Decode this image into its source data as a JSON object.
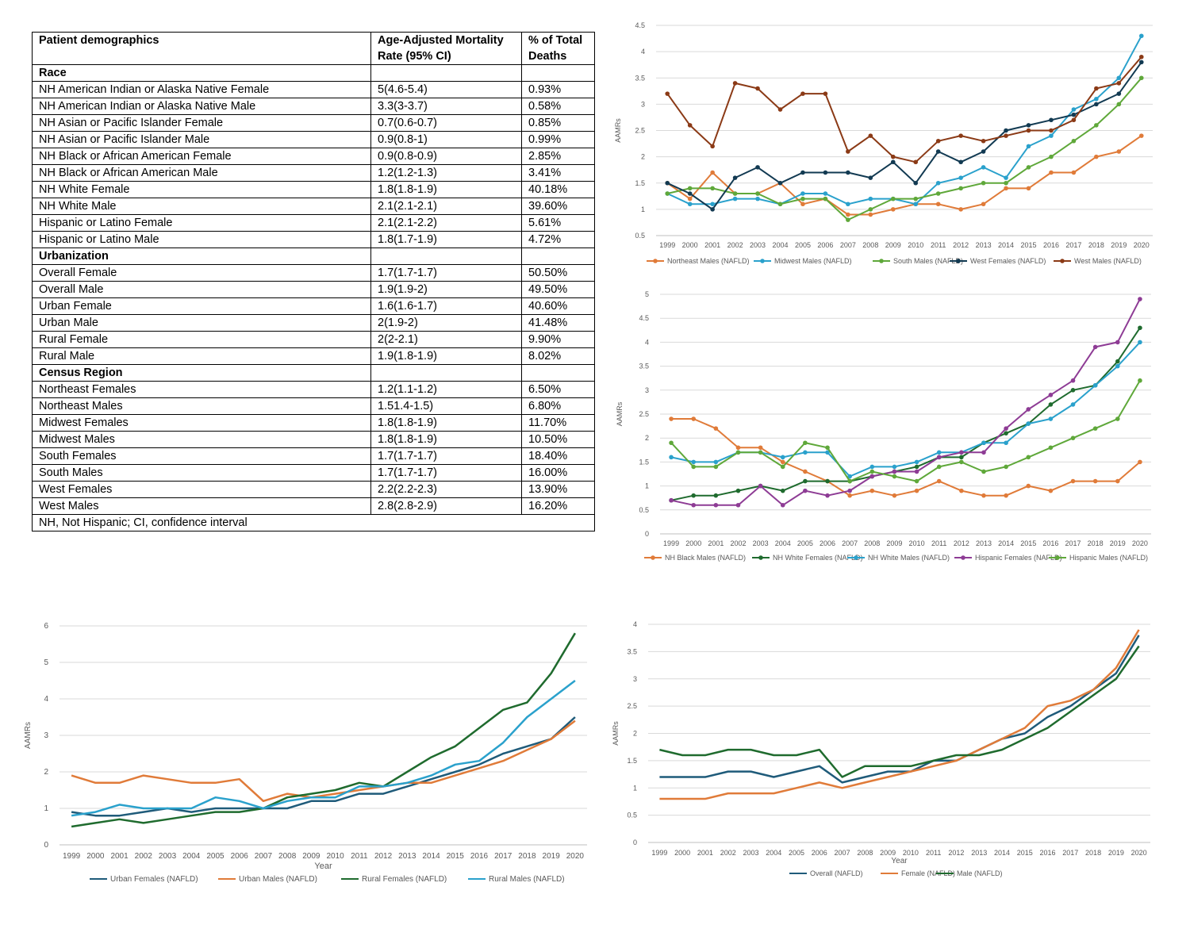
{
  "table": {
    "headers": [
      "Patient demographics",
      "Age-Adjusted Mortality Rate (95% CI)",
      "% of Total Deaths"
    ],
    "sections": [
      {
        "title": "Race",
        "rows": [
          [
            "NH American Indian or Alaska Native Female",
            "5(4.6-5.4)",
            "0.93%"
          ],
          [
            "NH American Indian or Alaska Native Male",
            "3.3(3-3.7)",
            "0.58%"
          ],
          [
            "NH Asian or Pacific Islander Female",
            "0.7(0.6-0.7)",
            "0.85%"
          ],
          [
            "NH Asian or Pacific Islander Male",
            "0.9(0.8-1)",
            "0.99%"
          ],
          [
            "NH Black or African American Female",
            "0.9(0.8-0.9)",
            "2.85%"
          ],
          [
            "NH Black or African American Male",
            "1.2(1.2-1.3)",
            "3.41%"
          ],
          [
            "NH White Female",
            "1.8(1.8-1.9)",
            "40.18%"
          ],
          [
            "NH White Male",
            "2.1(2.1-2.1)",
            "39.60%"
          ],
          [
            "Hispanic or Latino Female",
            "2.1(2.1-2.2)",
            "5.61%"
          ],
          [
            "Hispanic or Latino Male",
            "1.8(1.7-1.9)",
            "4.72%"
          ]
        ]
      },
      {
        "title": "Urbanization",
        "rows": [
          [
            "Overall Female",
            "1.7(1.7-1.7)",
            "50.50%"
          ],
          [
            "Overall Male",
            "1.9(1.9-2)",
            "49.50%"
          ],
          [
            "Urban Female",
            "1.6(1.6-1.7)",
            "40.60%"
          ],
          [
            "Urban Male",
            "2(1.9-2)",
            "41.48%"
          ],
          [
            "Rural Female",
            "2(2-2.1)",
            "9.90%"
          ],
          [
            "Rural Male",
            "1.9(1.8-1.9)",
            "8.02%"
          ]
        ]
      },
      {
        "title": "Census Region",
        "rows": [
          [
            "Northeast Females",
            "1.2(1.1-1.2)",
            "6.50%"
          ],
          [
            "Northeast Males",
            "1.51.4-1.5)",
            "6.80%"
          ],
          [
            "Midwest Females",
            "1.8(1.8-1.9)",
            "11.70%"
          ],
          [
            "Midwest Males",
            "1.8(1.8-1.9)",
            "10.50%"
          ],
          [
            "South Females",
            "1.7(1.7-1.7)",
            "18.40%"
          ],
          [
            "South Males",
            "1.7(1.7-1.7)",
            "16.00%"
          ],
          [
            "West Females",
            "2.2(2.2-2.3)",
            "13.90%"
          ],
          [
            "West Males",
            "2.8(2.8-2.9)",
            "16.20%"
          ]
        ]
      }
    ],
    "footnote": "NH, Not Hispanic; CI, confidence interval"
  },
  "chart_data": [
    {
      "id": "census",
      "type": "line",
      "markers": true,
      "ylabel": "AAMRs",
      "xlabel": "",
      "ylim": [
        0.5,
        4.5
      ],
      "yticks": [
        "0.5",
        "1",
        "1.5",
        "2",
        "2.5",
        "3",
        "3.5",
        "4",
        "4.5"
      ],
      "grid": true,
      "legend": "bottom",
      "categories": [
        "1999",
        "2000",
        "2001",
        "2002",
        "2003",
        "2004",
        "2005",
        "2006",
        "2007",
        "2008",
        "2009",
        "2010",
        "2011",
        "2012",
        "2013",
        "2014",
        "2015",
        "2016",
        "2017",
        "2018",
        "2019",
        "2020"
      ],
      "series": [
        {
          "name": "Northeast Males (NAFLD)",
          "color": "#e07b39",
          "values": [
            1.5,
            1.2,
            1.7,
            1.3,
            1.3,
            1.5,
            1.1,
            1.2,
            0.9,
            0.9,
            1.0,
            1.1,
            1.1,
            1.0,
            1.1,
            1.4,
            1.4,
            1.7,
            1.7,
            2.0,
            2.1,
            2.4
          ]
        },
        {
          "name": "Midwest Males (NAFLD)",
          "color": "#2aa1cc",
          "values": [
            1.3,
            1.1,
            1.1,
            1.2,
            1.2,
            1.1,
            1.3,
            1.3,
            1.1,
            1.2,
            1.2,
            1.1,
            1.5,
            1.6,
            1.8,
            1.6,
            2.2,
            2.4,
            2.9,
            3.1,
            3.5,
            4.3
          ]
        },
        {
          "name": "South Males (NAFLD)",
          "color": "#5fa83a",
          "values": [
            1.3,
            1.4,
            1.4,
            1.3,
            1.3,
            1.1,
            1.2,
            1.2,
            0.8,
            1.0,
            1.2,
            1.2,
            1.3,
            1.4,
            1.5,
            1.5,
            1.8,
            2.0,
            2.3,
            2.6,
            3.0,
            3.5
          ]
        },
        {
          "name": "West Females (NAFLD)",
          "color": "#123a52",
          "values": [
            1.5,
            1.3,
            1.0,
            1.6,
            1.8,
            1.5,
            1.7,
            1.7,
            1.7,
            1.6,
            1.9,
            1.5,
            2.1,
            1.9,
            2.1,
            2.5,
            2.6,
            2.7,
            2.8,
            3.0,
            3.2,
            3.8
          ]
        },
        {
          "name": "West Males (NAFLD)",
          "color": "#8b3a16",
          "values": [
            3.2,
            2.6,
            2.2,
            3.4,
            3.3,
            2.9,
            3.2,
            3.2,
            2.1,
            2.4,
            2.0,
            1.9,
            2.3,
            2.4,
            2.3,
            2.4,
            2.5,
            2.5,
            2.7,
            3.3,
            3.4,
            3.9
          ]
        }
      ]
    },
    {
      "id": "race",
      "type": "line",
      "markers": true,
      "ylabel": "AAMRs",
      "xlabel": "",
      "ylim": [
        0,
        5
      ],
      "yticks": [
        "0",
        "0.5",
        "1",
        "1.5",
        "2",
        "2.5",
        "3",
        "3.5",
        "4",
        "4.5",
        "5"
      ],
      "grid": true,
      "legend": "bottom",
      "categories": [
        "1999",
        "2000",
        "2001",
        "2002",
        "2003",
        "2004",
        "2005",
        "2006",
        "2007",
        "2008",
        "2009",
        "2010",
        "2011",
        "2012",
        "2013",
        "2014",
        "2015",
        "2016",
        "2017",
        "2018",
        "2019",
        "2020"
      ],
      "series": [
        {
          "name": "NH Black Males (NAFLD)",
          "color": "#e07b39",
          "values": [
            2.4,
            2.4,
            2.2,
            1.8,
            1.8,
            1.5,
            1.3,
            1.1,
            0.8,
            0.9,
            0.8,
            0.9,
            1.1,
            0.9,
            0.8,
            0.8,
            1.0,
            0.9,
            1.1,
            1.1,
            1.1,
            1.5
          ]
        },
        {
          "name": "NH White Females (NAFLD)",
          "color": "#1f6b2e",
          "values": [
            0.7,
            0.8,
            0.8,
            0.9,
            1.0,
            0.9,
            1.1,
            1.1,
            1.1,
            1.2,
            1.3,
            1.4,
            1.6,
            1.6,
            1.9,
            2.1,
            2.3,
            2.7,
            3.0,
            3.1,
            3.6,
            4.3
          ]
        },
        {
          "name": "NH White Males (NAFLD)",
          "color": "#2aa1cc",
          "values": [
            1.6,
            1.5,
            1.5,
            1.7,
            1.7,
            1.6,
            1.7,
            1.7,
            1.2,
            1.4,
            1.4,
            1.5,
            1.7,
            1.7,
            1.9,
            1.9,
            2.3,
            2.4,
            2.7,
            3.1,
            3.5,
            4.0
          ]
        },
        {
          "name": "Hispanic Females (NAFLD)",
          "color": "#8e3c95",
          "values": [
            0.7,
            0.6,
            0.6,
            0.6,
            1.0,
            0.6,
            0.9,
            0.8,
            0.9,
            1.2,
            1.3,
            1.3,
            1.6,
            1.7,
            1.7,
            2.2,
            2.6,
            2.9,
            3.2,
            3.9,
            4.0,
            4.9
          ]
        },
        {
          "name": "Hispanic Males (NAFLD)",
          "color": "#5fa83a",
          "values": [
            1.9,
            1.4,
            1.4,
            1.7,
            1.7,
            1.4,
            1.9,
            1.8,
            1.1,
            1.3,
            1.2,
            1.1,
            1.4,
            1.5,
            1.3,
            1.4,
            1.6,
            1.8,
            2.0,
            2.2,
            2.4,
            3.2
          ]
        }
      ]
    },
    {
      "id": "urbanization",
      "type": "line",
      "markers": false,
      "ylabel": "AAMRs",
      "xlabel": "Year",
      "ylim": [
        0,
        6
      ],
      "yticks": [
        "0",
        "1",
        "2",
        "3",
        "4",
        "5",
        "6"
      ],
      "grid": true,
      "legend": "bottom",
      "categories": [
        "1999",
        "2000",
        "2001",
        "2002",
        "2003",
        "2004",
        "2005",
        "2006",
        "2007",
        "2008",
        "2009",
        "2010",
        "2011",
        "2012",
        "2013",
        "2014",
        "2015",
        "2016",
        "2017",
        "2018",
        "2019",
        "2020"
      ],
      "series": [
        {
          "name": "Urban Females (NAFLD)",
          "color": "#1f5b7a",
          "values": [
            0.9,
            0.8,
            0.8,
            0.9,
            1.0,
            0.9,
            1.0,
            1.0,
            1.0,
            1.0,
            1.2,
            1.2,
            1.4,
            1.4,
            1.6,
            1.8,
            2.0,
            2.2,
            2.5,
            2.7,
            2.9,
            3.5
          ]
        },
        {
          "name": "Urban Males (NAFLD)",
          "color": "#e07b39",
          "values": [
            1.9,
            1.7,
            1.7,
            1.9,
            1.8,
            1.7,
            1.7,
            1.8,
            1.2,
            1.4,
            1.3,
            1.4,
            1.5,
            1.6,
            1.7,
            1.7,
            1.9,
            2.1,
            2.3,
            2.6,
            2.9,
            3.4
          ]
        },
        {
          "name": "Rural Females (NAFLD)",
          "color": "#1f6b2e",
          "values": [
            0.5,
            0.6,
            0.7,
            0.6,
            0.7,
            0.8,
            0.9,
            0.9,
            1.0,
            1.3,
            1.4,
            1.5,
            1.7,
            1.6,
            2.0,
            2.4,
            2.7,
            3.2,
            3.7,
            3.9,
            4.7,
            5.8
          ]
        },
        {
          "name": "Rural Males (NAFLD)",
          "color": "#2aa1cc",
          "values": [
            0.8,
            0.9,
            1.1,
            1.0,
            1.0,
            1.0,
            1.3,
            1.2,
            1.0,
            1.2,
            1.3,
            1.3,
            1.6,
            1.6,
            1.7,
            1.9,
            2.2,
            2.3,
            2.8,
            3.5,
            4.0,
            4.5
          ]
        }
      ]
    },
    {
      "id": "sex",
      "type": "line",
      "markers": false,
      "ylabel": "AAMRs",
      "xlabel": "Year",
      "ylim": [
        0,
        4
      ],
      "yticks": [
        "0",
        "0.5",
        "1",
        "1.5",
        "2",
        "2.5",
        "3",
        "3.5",
        "4"
      ],
      "grid": true,
      "legend": "bottom",
      "categories": [
        "1999",
        "2000",
        "2001",
        "2002",
        "2003",
        "2004",
        "2005",
        "2006",
        "2007",
        "2008",
        "2009",
        "2010",
        "2011",
        "2012",
        "2013",
        "2014",
        "2015",
        "2016",
        "2017",
        "2018",
        "2019",
        "2020"
      ],
      "series": [
        {
          "name": "Overall (NAFLD)",
          "color": "#1f5b7a",
          "values": [
            1.2,
            1.2,
            1.2,
            1.3,
            1.3,
            1.2,
            1.3,
            1.4,
            1.1,
            1.2,
            1.3,
            1.3,
            1.5,
            1.5,
            1.7,
            1.9,
            2.0,
            2.3,
            2.5,
            2.8,
            3.1,
            3.8
          ]
        },
        {
          "name": "Female (NAFLD)",
          "color": "#e07b39",
          "values": [
            0.8,
            0.8,
            0.8,
            0.9,
            0.9,
            0.9,
            1.0,
            1.1,
            1.0,
            1.1,
            1.2,
            1.3,
            1.4,
            1.5,
            1.7,
            1.9,
            2.1,
            2.5,
            2.6,
            2.8,
            3.2,
            3.9
          ]
        },
        {
          "name": "Male (NAFLD)",
          "color": "#1f6b2e",
          "values": [
            1.7,
            1.6,
            1.6,
            1.7,
            1.7,
            1.6,
            1.6,
            1.7,
            1.2,
            1.4,
            1.4,
            1.4,
            1.5,
            1.6,
            1.6,
            1.7,
            1.9,
            2.1,
            2.4,
            2.7,
            3.0,
            3.6
          ]
        }
      ]
    }
  ]
}
